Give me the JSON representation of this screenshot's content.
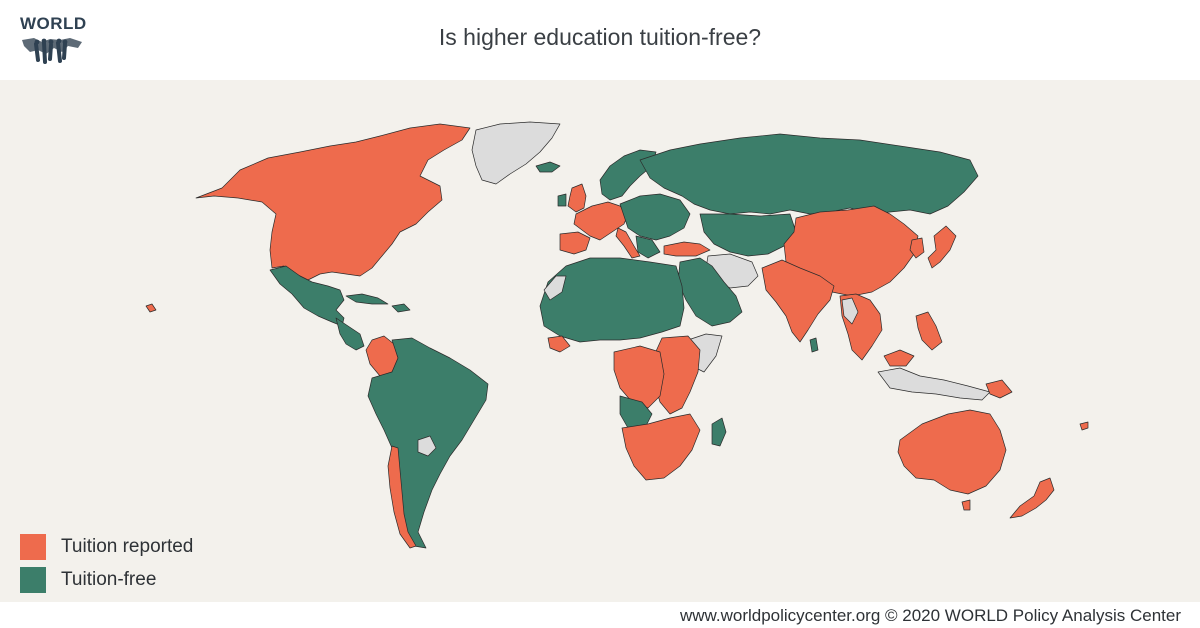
{
  "logo": {
    "text": "WORLD"
  },
  "title": "Is higher education tuition-free?",
  "colors": {
    "tuition_reported": "#ee6b4d",
    "tuition_free": "#3c7e6a",
    "no_data": "#dcdcdc",
    "background": "#f3f1ec",
    "border": "#2b2b2b"
  },
  "legend": [
    {
      "label": "Tuition reported",
      "color": "#ee6b4d"
    },
    {
      "label": "Tuition-free",
      "color": "#3c7e6a"
    }
  ],
  "credit": "www.worldpolicycenter.org © 2020 WORLD Policy Analysis Center"
}
